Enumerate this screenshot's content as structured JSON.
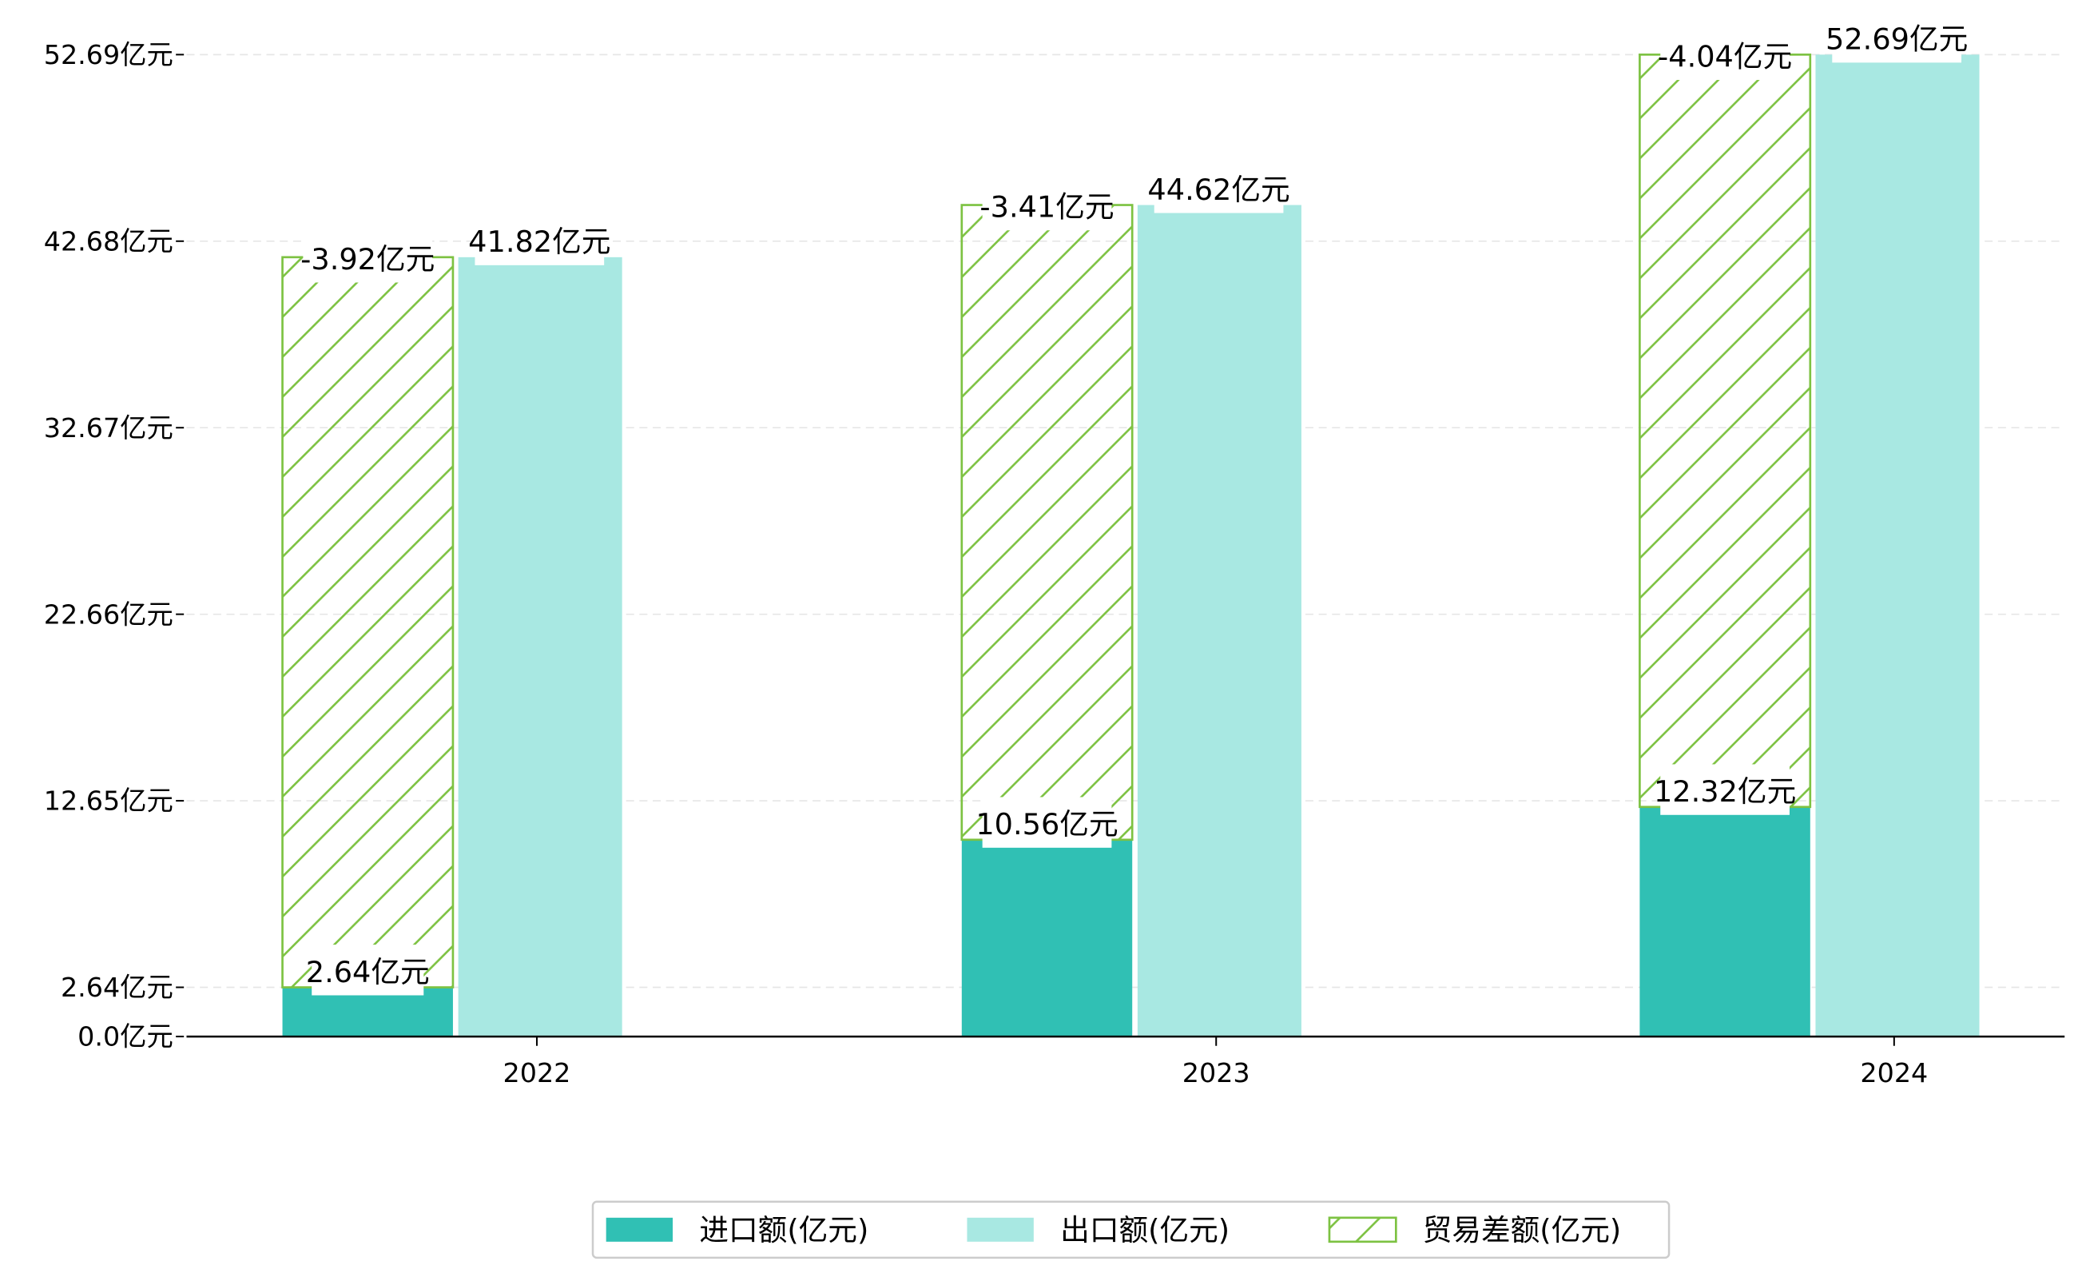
{
  "chart_data": {
    "type": "bar",
    "title": "",
    "xlabel": "",
    "ylabel": "",
    "categories": [
      "2022",
      "2023",
      "2024"
    ],
    "series": [
      {
        "name": "进口额(亿元)",
        "values": [
          2.64,
          10.56,
          12.32
        ],
        "labels": [
          "2.64亿元",
          "10.56亿元",
          "12.32亿元"
        ],
        "color": "#30c0b4"
      },
      {
        "name": "出口额(亿元)",
        "values": [
          41.82,
          44.62,
          52.69
        ],
        "labels": [
          "41.82亿元",
          "44.62亿元",
          "52.69亿元"
        ],
        "color": "#a8e8e2"
      },
      {
        "name": "贸易差额(亿元)",
        "values": [
          -3.92,
          -3.41,
          -4.04
        ],
        "labels": [
          "-3.92亿元",
          "-3.41亿元",
          "-4.04亿元"
        ],
        "color": "#7dc242",
        "hatch": "diagonal"
      }
    ],
    "yticks": [
      0.0,
      2.64,
      12.65,
      22.66,
      32.67,
      42.68,
      52.69
    ],
    "ytick_labels": [
      "0.0亿元",
      "2.64亿元",
      "12.65亿元",
      "22.66亿元",
      "32.67亿元",
      "42.68亿元",
      "52.69亿元"
    ],
    "ylim": [
      0,
      52.69
    ],
    "grid": "horizontal dashed",
    "legend_position": "bottom-center"
  }
}
